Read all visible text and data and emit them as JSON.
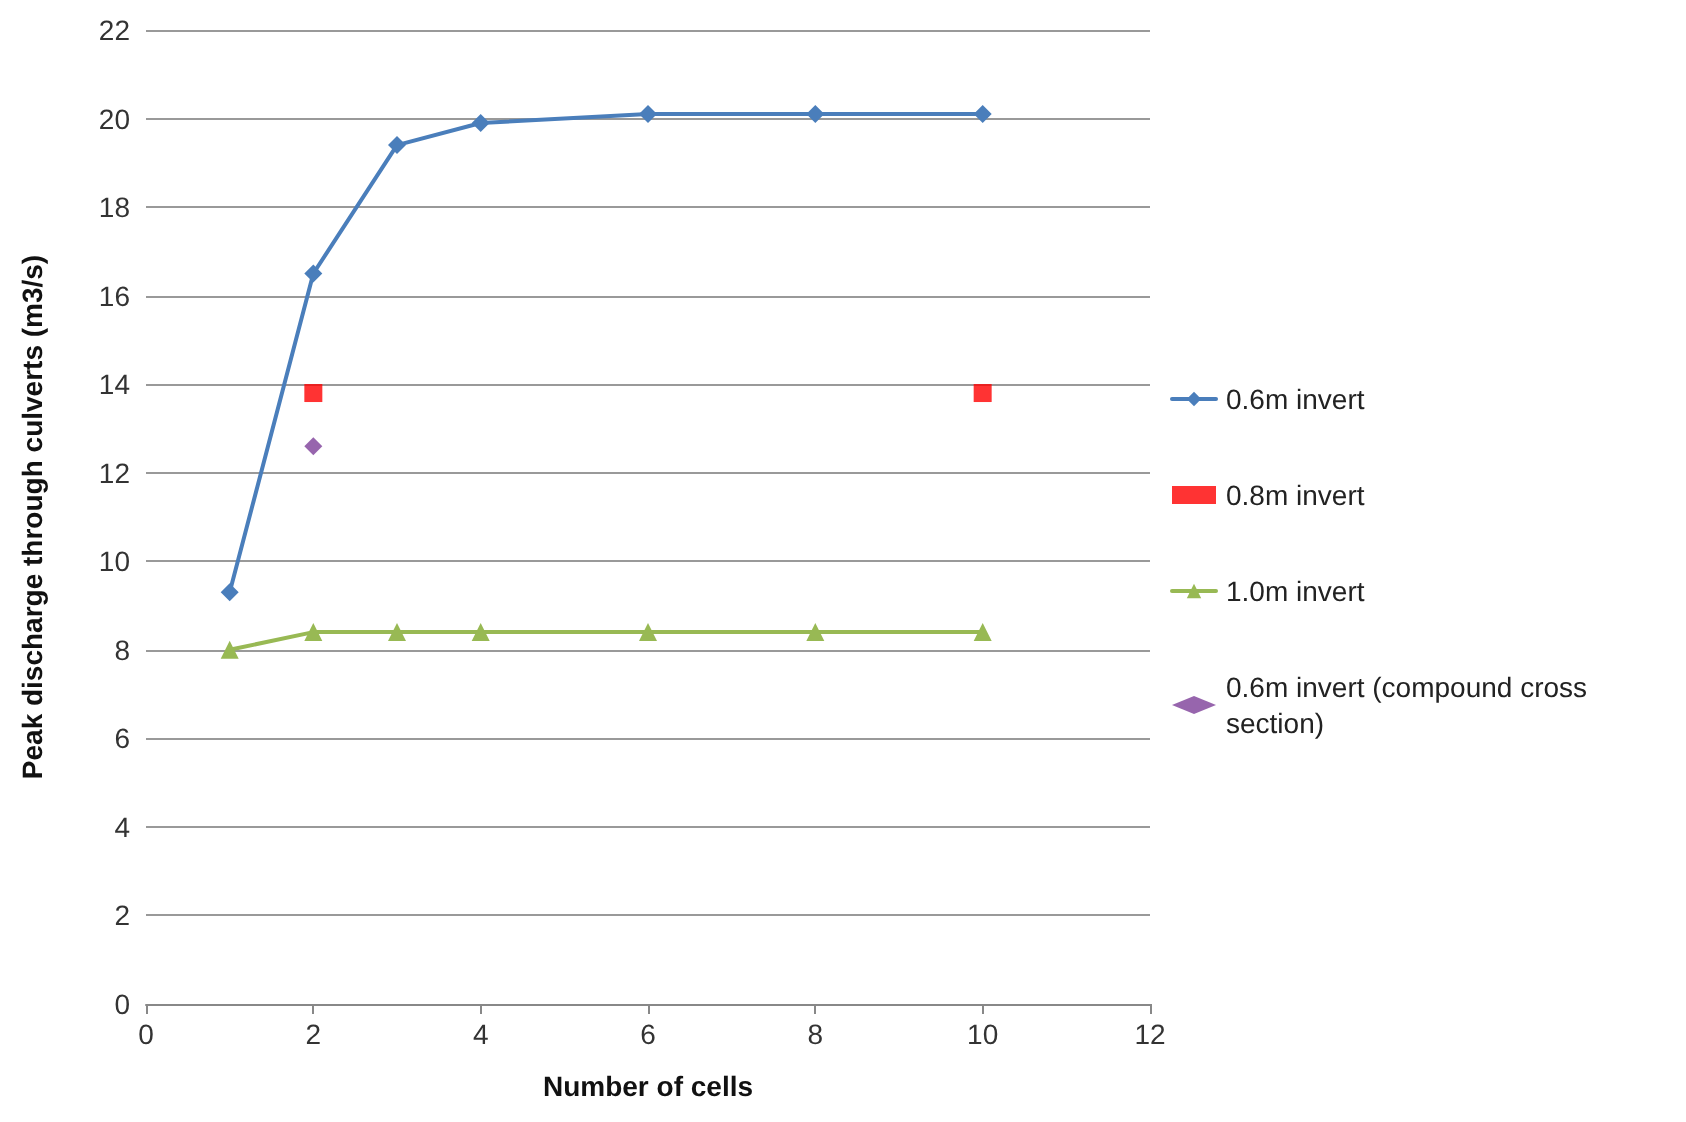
{
  "chart_data": {
    "type": "line",
    "xlabel": "Number of cells",
    "ylabel": "Peak discharge through culverts (m3/s)",
    "xlim": [
      0,
      12
    ],
    "xticks": [
      0,
      2,
      4,
      6,
      8,
      10,
      12
    ],
    "ylim": [
      0,
      22
    ],
    "yticks": [
      0,
      2,
      4,
      6,
      8,
      10,
      12,
      14,
      16,
      18,
      20,
      22
    ],
    "grid": "y",
    "legend": "right",
    "series": [
      {
        "name": "0.6m invert",
        "marker": "diamond",
        "color": "#4a7ebb",
        "x": [
          1,
          2,
          3,
          4,
          6,
          8,
          10
        ],
        "values": [
          9.3,
          16.5,
          19.4,
          19.9,
          20.1,
          20.1,
          20.1
        ]
      },
      {
        "name": "0.8m invert",
        "type": "scatter",
        "marker": "square",
        "color": "#ff0000",
        "x": [
          2,
          10
        ],
        "values": [
          13.8,
          13.8
        ]
      },
      {
        "name": "1.0m invert",
        "marker": "triangle",
        "color": "#98b954",
        "x": [
          1,
          2,
          3,
          4,
          6,
          8,
          10
        ],
        "values": [
          8.0,
          8.4,
          8.4,
          8.4,
          8.4,
          8.4,
          8.4
        ]
      },
      {
        "name": "0.6m invert (compound cross section)",
        "type": "scatter",
        "marker": "diamond",
        "color": "#7d3f98",
        "x": [
          2
        ],
        "values": [
          12.6
        ]
      }
    ]
  }
}
